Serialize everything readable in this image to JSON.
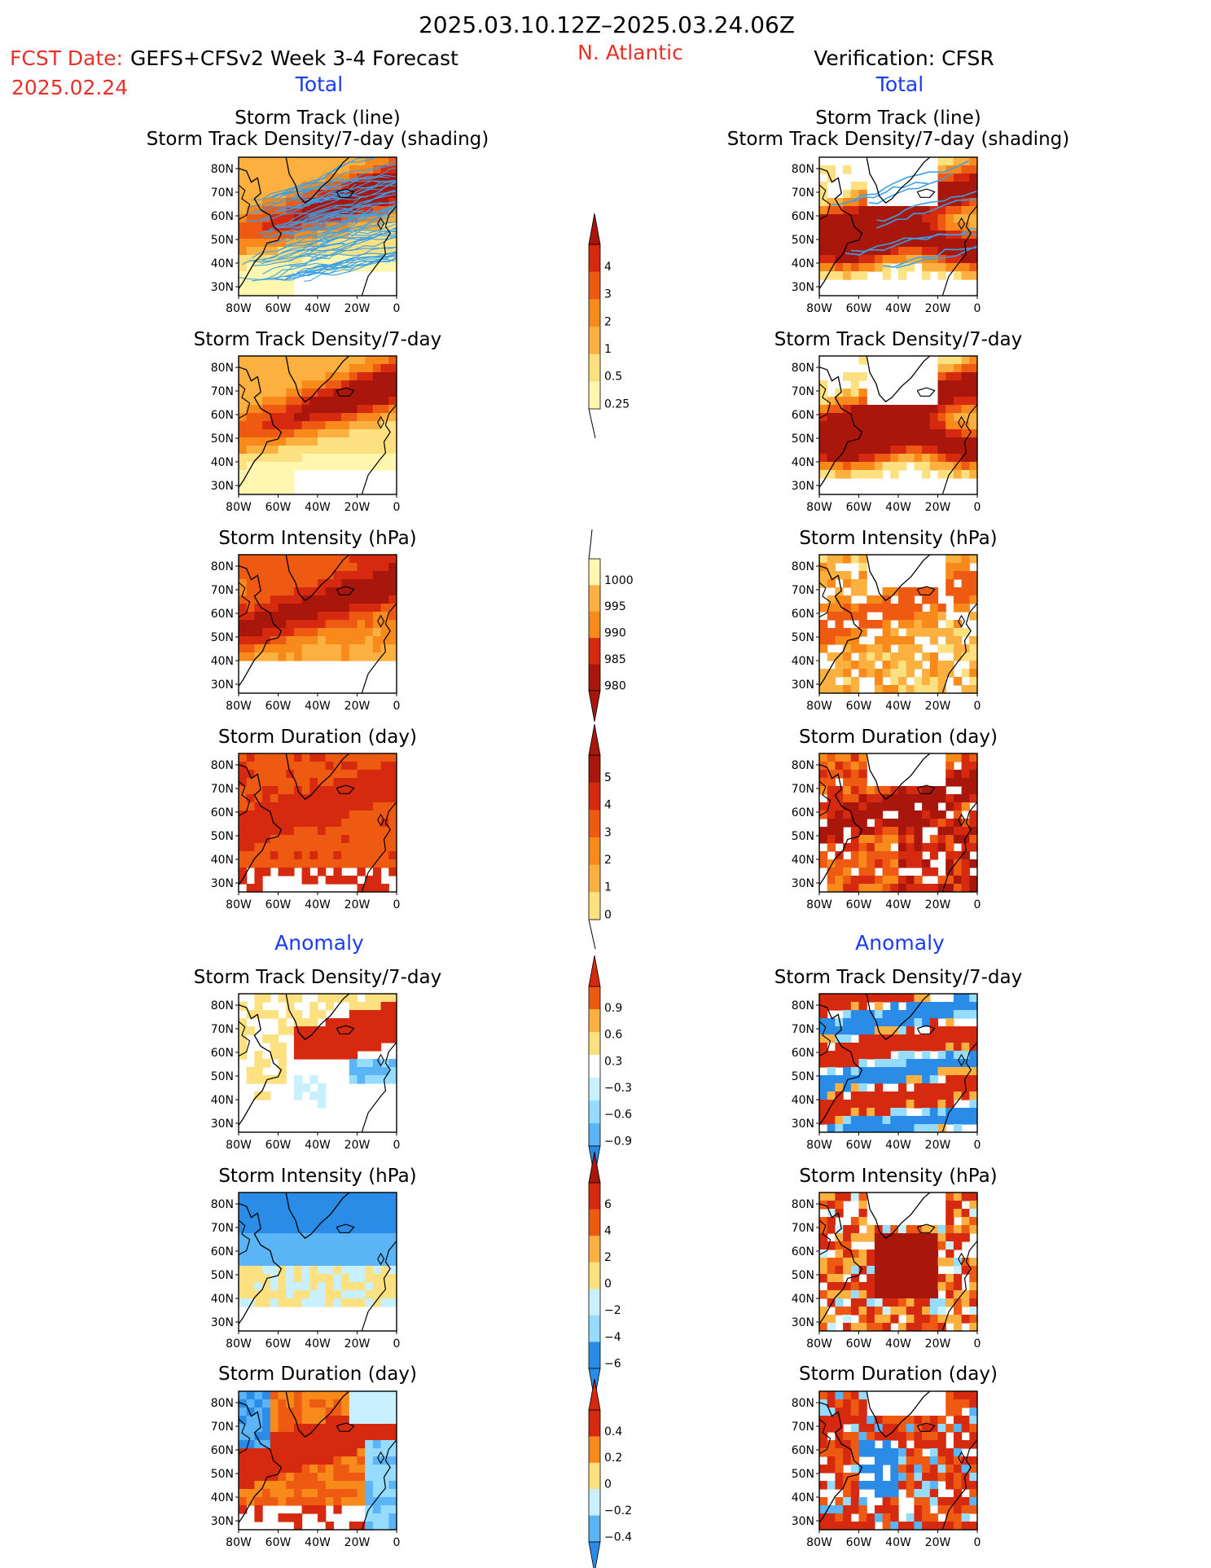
{
  "header": {
    "date_range": "2025.03.10.12Z–2025.03.24.06Z",
    "fcst_label": "FCST Date:",
    "fcst_date": "2025.02.24",
    "model_title": "GEFS+CFSv2 Week 3-4 Forecast",
    "region": "N. Atlantic",
    "verification_title": "Verification: CFSR",
    "left_total": "Total",
    "right_total": "Total",
    "left_anomaly": "Anomaly",
    "right_anomaly": "Anomaly"
  },
  "colors": {
    "title_red": "#e8302a",
    "label_blue": "#1a3cf0",
    "track_line": "#3ca0e6",
    "warm": [
      "#fff7b0",
      "#fde080",
      "#fbb040",
      "#f88a1c",
      "#ee5a12",
      "#d62a10",
      "#a8160c"
    ],
    "cool": [
      "#c8f0ff",
      "#96dcff",
      "#5ab4f5",
      "#2a8ce6",
      "#1460c8"
    ]
  },
  "axes": {
    "lat_labels": [
      "80N",
      "70N",
      "60N",
      "50N",
      "40N",
      "30N"
    ],
    "lon_labels": [
      "80W",
      "60W",
      "40W",
      "20W",
      "0"
    ]
  },
  "panels": {
    "left": [
      {
        "title1": "Storm Track (line)",
        "title2": "Storm Track Density/7-day (shading)",
        "map": "track"
      },
      {
        "title1": "Storm Track Density/7-day",
        "title2": "",
        "map": "density"
      },
      {
        "title1": "Storm Intensity (hPa)",
        "title2": "",
        "map": "intensity"
      },
      {
        "title1": "Storm Duration (day)",
        "title2": "",
        "map": "duration"
      },
      {
        "title1": "Storm Track Density/7-day",
        "title2": "",
        "map": "anom_density"
      },
      {
        "title1": "Storm Intensity (hPa)",
        "title2": "",
        "map": "anom_intensity"
      },
      {
        "title1": "Storm Duration (day)",
        "title2": "",
        "map": "anom_duration"
      }
    ],
    "right": [
      {
        "title1": "Storm Track (line)",
        "title2": "Storm Track Density/7-day (shading)",
        "map": "track"
      },
      {
        "title1": "Storm Track Density/7-day",
        "title2": "",
        "map": "density"
      },
      {
        "title1": "Storm Intensity (hPa)",
        "title2": "",
        "map": "intensity"
      },
      {
        "title1": "Storm Duration (day)",
        "title2": "",
        "map": "duration"
      },
      {
        "title1": "Storm Track Density/7-day",
        "title2": "",
        "map": "anom_density"
      },
      {
        "title1": "Storm Intensity (hPa)",
        "title2": "",
        "map": "anom_intensity"
      },
      {
        "title1": "Storm Duration (day)",
        "title2": "",
        "map": "anom_duration"
      }
    ]
  },
  "colorbars": [
    {
      "name": "density",
      "labels": [
        "4",
        "3",
        "2",
        "1",
        "0.5",
        "0.25"
      ]
    },
    {
      "name": "intensity",
      "labels": [
        "1000",
        "995",
        "990",
        "985",
        "980"
      ]
    },
    {
      "name": "duration",
      "labels": [
        "5",
        "4",
        "3",
        "2",
        "1",
        "0"
      ]
    },
    {
      "name": "anom-density",
      "labels": [
        "0.9",
        "0.6",
        "0.3",
        "−0.3",
        "−0.6",
        "−0.9"
      ]
    },
    {
      "name": "anom-intensity",
      "labels": [
        "6",
        "4",
        "2",
        "0",
        "−2",
        "−4",
        "−6"
      ]
    },
    {
      "name": "anom-duration",
      "labels": [
        "0.4",
        "0.2",
        "0",
        "−0.2",
        "−0.4"
      ]
    }
  ]
}
